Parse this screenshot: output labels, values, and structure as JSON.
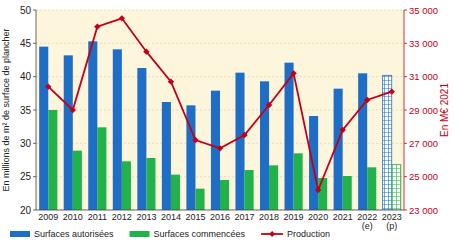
{
  "chart_data": {
    "type": "bar",
    "ylabel": "En millions de m² de surface de plancher",
    "y2label": "En M€ 2021",
    "categories": [
      "2009",
      "2010",
      "2011",
      "2012",
      "2013",
      "2014",
      "2015",
      "2016",
      "2017",
      "2018",
      "2019",
      "2020",
      "2021",
      "2022 (e)",
      "2023 (p)"
    ],
    "series": [
      {
        "name": "Surfaces autorisées",
        "type": "bar",
        "color": "#1e6ec8",
        "values": [
          44.5,
          43.2,
          45.3,
          44.1,
          41.3,
          36.2,
          35.7,
          37.9,
          40.6,
          39.3,
          42.1,
          34.1,
          38.2,
          40.5,
          40.2
        ]
      },
      {
        "name": "Surfaces commencées",
        "type": "bar",
        "color": "#21b24b",
        "values": [
          35.0,
          28.9,
          32.4,
          27.3,
          27.8,
          25.3,
          23.2,
          24.5,
          26.0,
          26.7,
          28.5,
          24.8,
          25.1,
          26.4,
          26.8
        ]
      },
      {
        "name": "Production",
        "type": "line",
        "axis": "y2",
        "color": "#c00018",
        "marker": "diamond",
        "line_style": "solid",
        "values": [
          30400,
          29000,
          34000,
          34500,
          32500,
          30700,
          27200,
          26700,
          27500,
          29300,
          31200,
          24200,
          27800,
          29600,
          30100
        ]
      }
    ],
    "ylim": [
      20,
      50
    ],
    "yticks": [
      20,
      25,
      30,
      35,
      40,
      45,
      50
    ],
    "y2lim": [
      23000,
      35000
    ],
    "y2ticks": [
      {
        "value": 23000,
        "label": "23 000"
      },
      {
        "value": 25000,
        "label": "25 000"
      },
      {
        "value": 27000,
        "label": "27 000"
      },
      {
        "value": 29000,
        "label": "29 000"
      },
      {
        "value": 31000,
        "label": "31 000"
      },
      {
        "value": 33000,
        "label": "33 000"
      },
      {
        "value": 35000,
        "label": "35 000"
      }
    ],
    "grid": true,
    "legend": "bottom"
  }
}
